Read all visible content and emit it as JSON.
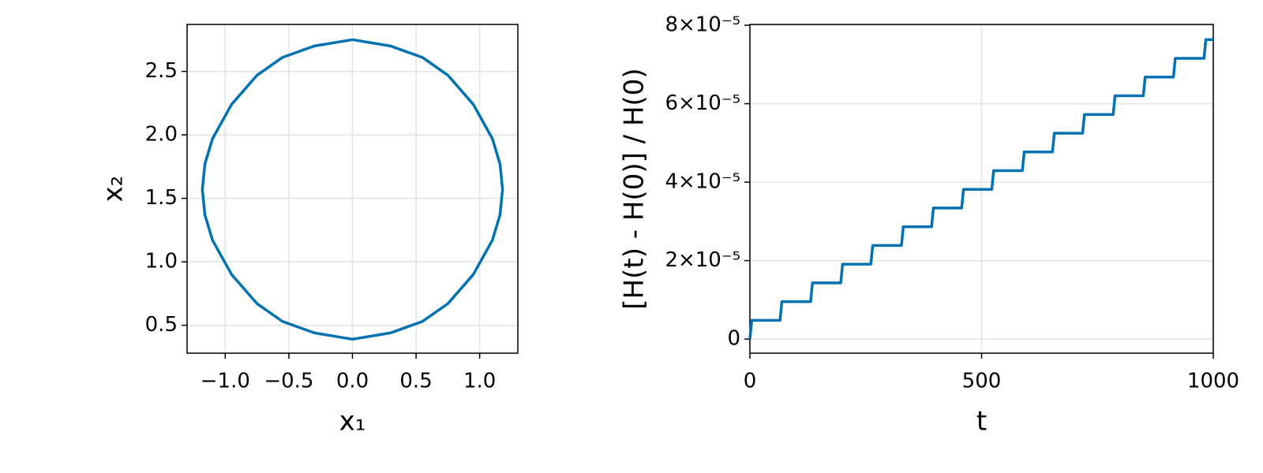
{
  "chart_data": [
    {
      "type": "line",
      "xlabel": "x₁",
      "ylabel": "x₂",
      "color": "#0072b2",
      "grid": true,
      "xlim": [
        -1.3,
        1.3
      ],
      "ylim": [
        0.28,
        2.87
      ],
      "xticks": [
        {
          "value": -1,
          "label": "−1.0"
        },
        {
          "value": -0.5,
          "label": "−0.5"
        },
        {
          "value": 0,
          "label": "0.0"
        },
        0.5,
        {
          "value": 1,
          "label": "1.0"
        }
      ],
      "yticks": [
        0.5,
        {
          "value": 1,
          "label": "1.0"
        },
        1.5,
        {
          "value": 2,
          "label": "2.0"
        },
        2.5
      ],
      "x": [
        0,
        0.3,
        0.55,
        0.75,
        0.95,
        1.1,
        1.16,
        1.18,
        1.16,
        1.1,
        0.95,
        0.75,
        0.55,
        0.3,
        0,
        -0.3,
        -0.55,
        -0.75,
        -0.95,
        -1.1,
        -1.16,
        -1.18,
        -1.16,
        -1.1,
        -0.95,
        -0.75,
        -0.55,
        -0.3,
        0
      ],
      "values": [
        2.75,
        2.7,
        2.61,
        2.47,
        2.24,
        1.97,
        1.77,
        1.57,
        1.37,
        1.17,
        0.9,
        0.67,
        0.53,
        0.44,
        0.39,
        0.44,
        0.53,
        0.67,
        0.9,
        1.17,
        1.37,
        1.57,
        1.77,
        1.97,
        2.24,
        2.47,
        2.61,
        2.7,
        2.75
      ]
    },
    {
      "type": "line",
      "xlabel": "t",
      "ylabel": "[H(t) - H(0)] / H(0)",
      "color": "#0072b2",
      "grid": true,
      "xlim": [
        0,
        1000
      ],
      "ylim": [
        -3.6e-06,
        8.02e-05
      ],
      "xticks": [
        0,
        500,
        1000
      ],
      "yticks": [
        0,
        {
          "value": 2e-05,
          "label": "2×10⁻⁵"
        },
        {
          "value": 4e-05,
          "label": "4×10⁻⁵"
        },
        {
          "value": 6e-05,
          "label": "6×10⁻⁵"
        },
        {
          "value": 8e-05,
          "label": "8×10⁻⁵"
        }
      ],
      "x": [
        0,
        4,
        65,
        69,
        131,
        135,
        196,
        200,
        261,
        265,
        327,
        331,
        392,
        396,
        457,
        461,
        522,
        526,
        588,
        592,
        653,
        657,
        718,
        722,
        784,
        788,
        849,
        853,
        914,
        918,
        980,
        984,
        1000
      ],
      "values": [
        0,
        4.77e-06,
        4.77e-06,
        9.54e-06,
        9.54e-06,
        1.431e-05,
        1.431e-05,
        1.908e-05,
        1.908e-05,
        2.385e-05,
        2.385e-05,
        2.862e-05,
        2.862e-05,
        3.339e-05,
        3.339e-05,
        3.816e-05,
        3.816e-05,
        4.293e-05,
        4.293e-05,
        4.77e-05,
        4.77e-05,
        5.247e-05,
        5.247e-05,
        5.724e-05,
        5.724e-05,
        6.201e-05,
        6.201e-05,
        6.678e-05,
        6.678e-05,
        7.155e-05,
        7.155e-05,
        7.632e-05,
        7.632e-05
      ]
    }
  ]
}
